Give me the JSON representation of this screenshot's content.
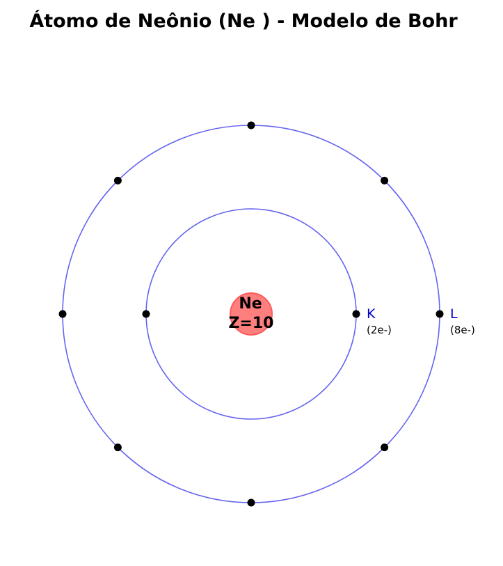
{
  "title": "Átomo de Neônio  (Ne ) - Modelo de Bohr",
  "nucleus": {
    "symbol": "Ne",
    "atomic_number_label": "Z=10",
    "fill_color": "#ff7f7f",
    "stroke_color": "#ff5a5a"
  },
  "colors": {
    "orbit": "#6464f0",
    "electron": "#000000",
    "shell_label": "#0000cc"
  },
  "shells": [
    {
      "name": "K",
      "count_label": "(2e-)",
      "electrons": 2
    },
    {
      "name": "L",
      "count_label": "(8e-)",
      "electrons": 8
    }
  ]
}
